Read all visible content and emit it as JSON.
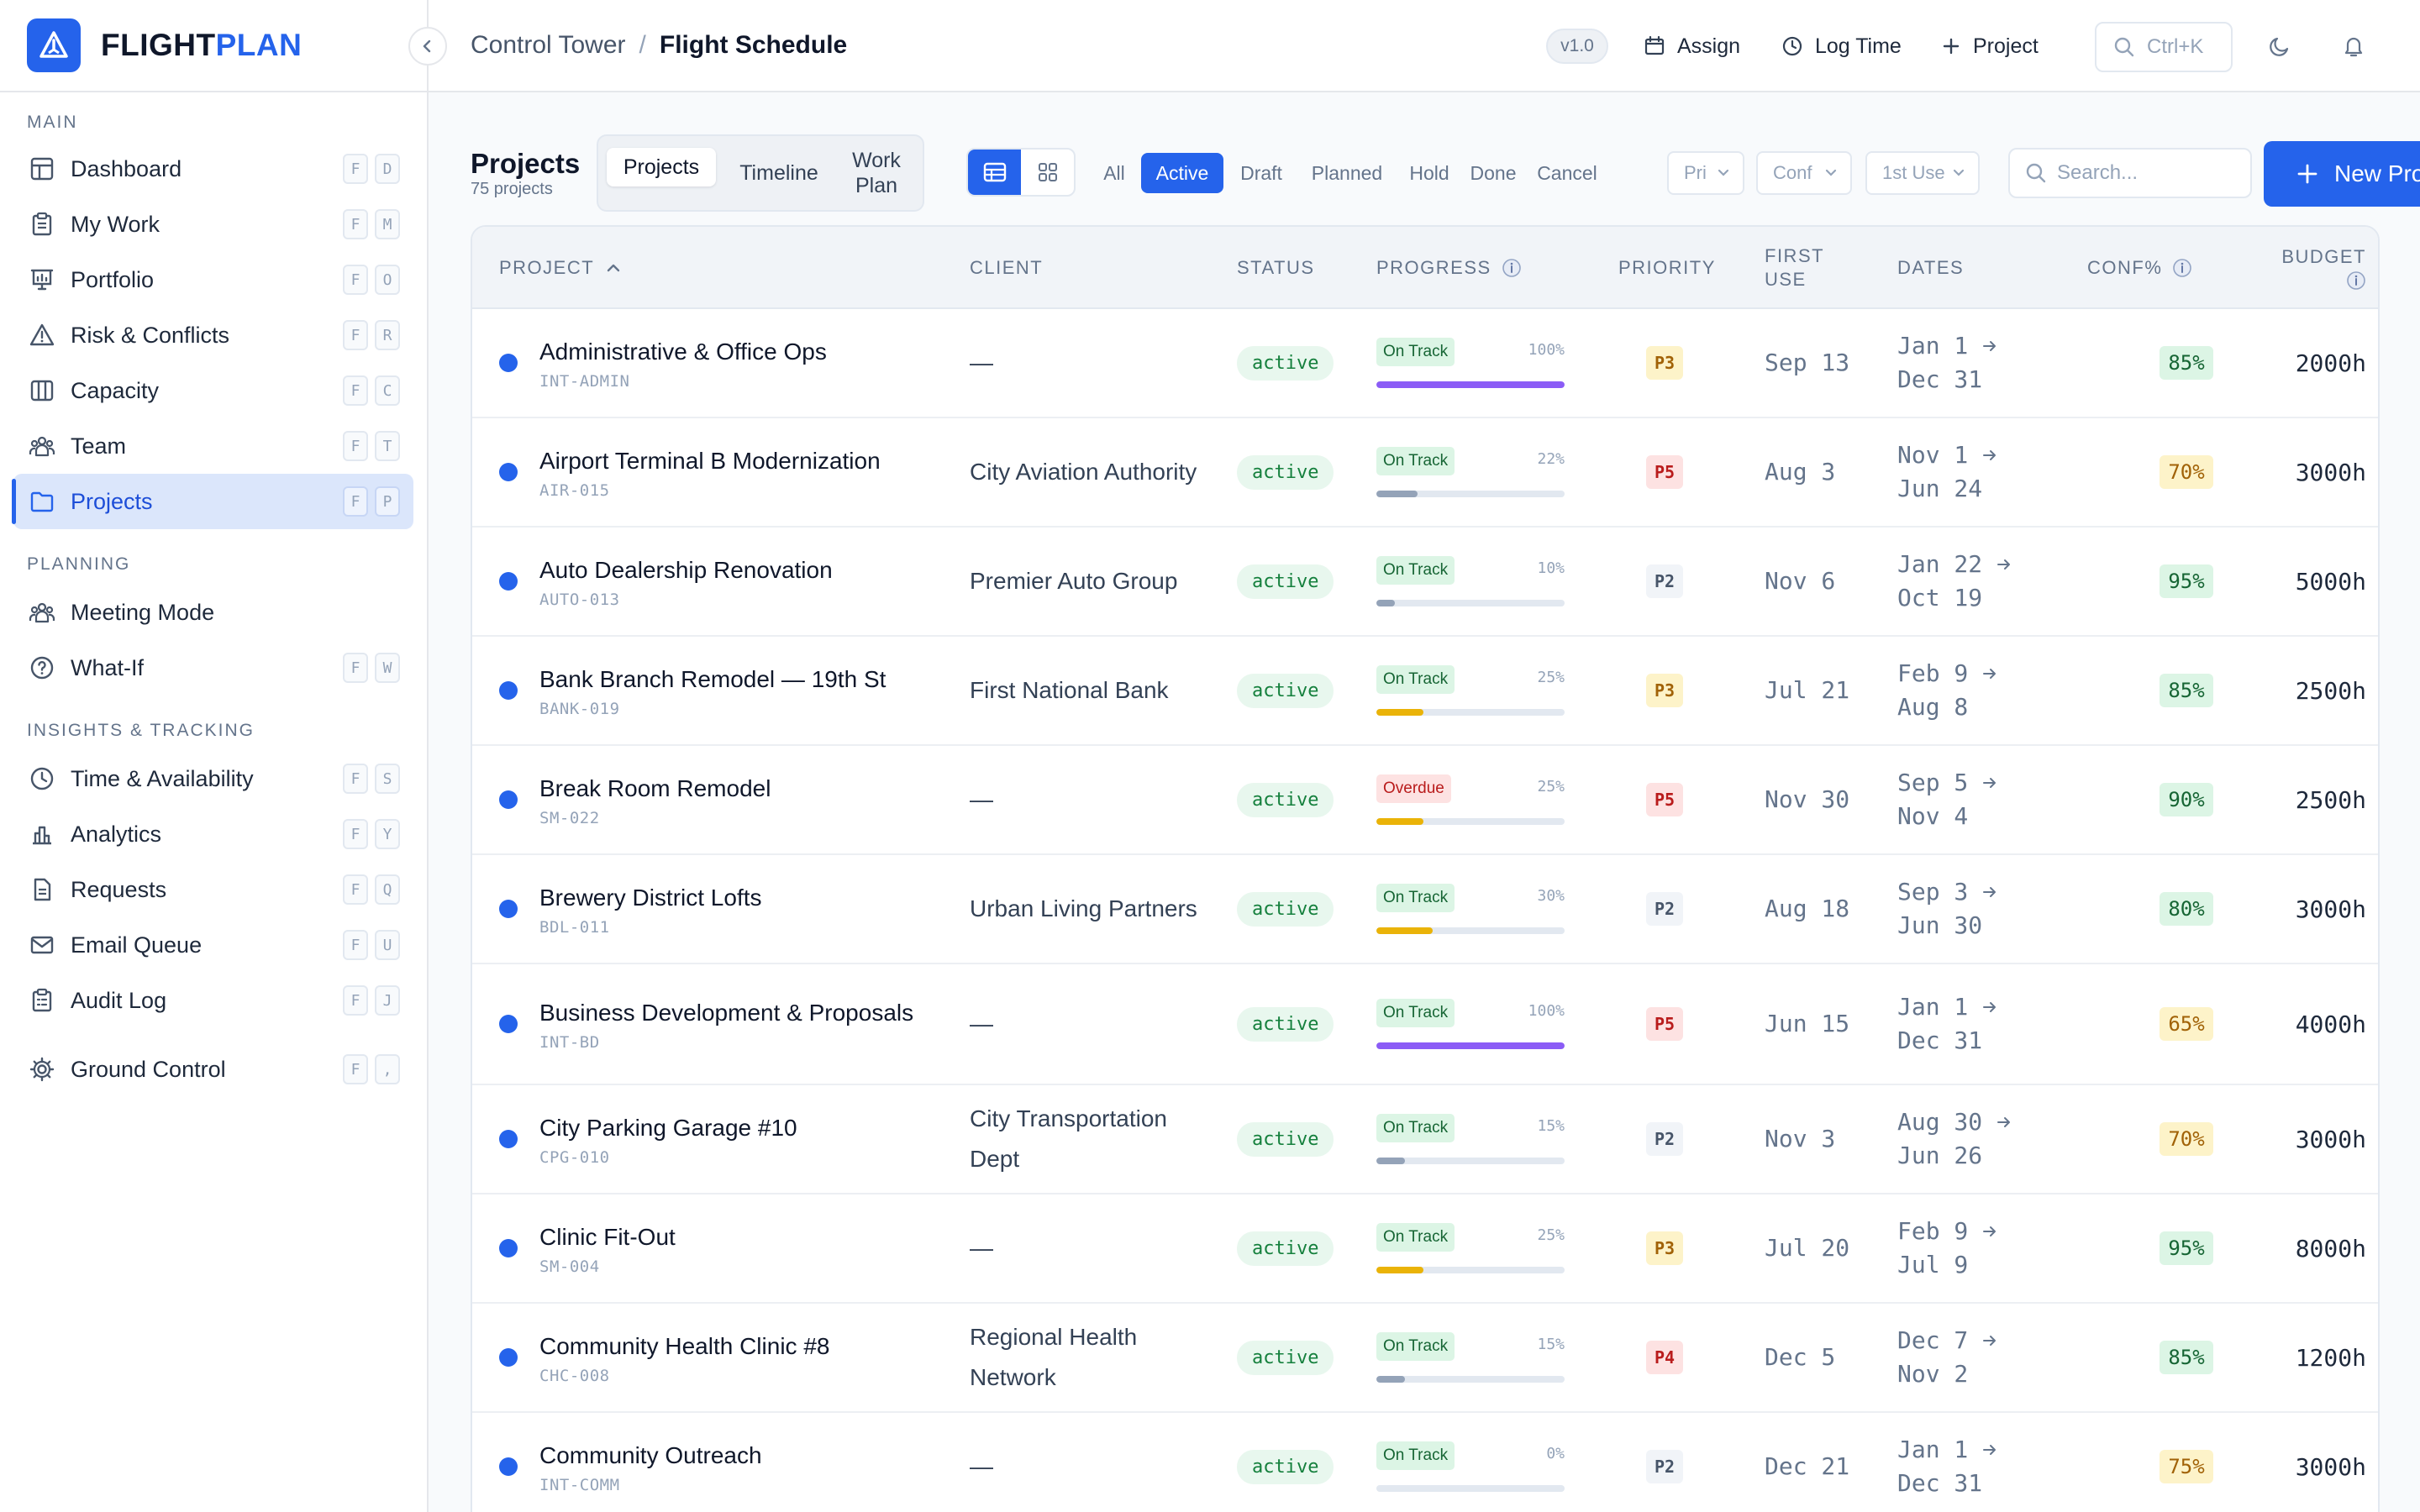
{
  "app": {
    "brand_part1": "FLIGHT",
    "brand_part2": "PLAN",
    "accent": "#2563eb"
  },
  "sidebar": {
    "sections": [
      {
        "title": "MAIN",
        "items": [
          {
            "label": "Dashboard",
            "icon": "dashboard-icon",
            "keys": [
              "F",
              "D"
            ]
          },
          {
            "label": "My Work",
            "icon": "clipboard-icon",
            "keys": [
              "F",
              "M"
            ]
          },
          {
            "label": "Portfolio",
            "icon": "presentation-chart-icon",
            "keys": [
              "F",
              "O"
            ]
          },
          {
            "label": "Risk & Conflicts",
            "icon": "warning-triangle-icon",
            "keys": [
              "F",
              "R"
            ]
          },
          {
            "label": "Capacity",
            "icon": "columns-icon",
            "keys": [
              "F",
              "C"
            ]
          },
          {
            "label": "Team",
            "icon": "team-icon",
            "keys": [
              "F",
              "T"
            ]
          },
          {
            "label": "Projects",
            "icon": "folder-icon",
            "keys": [
              "F",
              "P"
            ],
            "active": true
          }
        ]
      },
      {
        "title": "PLANNING",
        "items": [
          {
            "label": "Meeting Mode",
            "icon": "team-icon",
            "keys": []
          },
          {
            "label": "What-If",
            "icon": "help-circle-icon",
            "keys": [
              "F",
              "W"
            ]
          }
        ]
      },
      {
        "title": "INSIGHTS & TRACKING",
        "items": [
          {
            "label": "Time & Availability",
            "icon": "clock-icon",
            "keys": [
              "F",
              "S"
            ]
          },
          {
            "label": "Analytics",
            "icon": "bar-chart-icon",
            "keys": [
              "F",
              "Y"
            ]
          },
          {
            "label": "Requests",
            "icon": "document-icon",
            "keys": [
              "F",
              "Q"
            ]
          },
          {
            "label": "Email Queue",
            "icon": "mail-icon",
            "keys": [
              "F",
              "U"
            ]
          },
          {
            "label": "Audit Log",
            "icon": "clipboard-list-icon",
            "keys": [
              "F",
              "J"
            ]
          }
        ]
      }
    ],
    "footer_item": {
      "label": "Ground Control",
      "icon": "gear-icon",
      "keys": [
        "F",
        ","
      ]
    }
  },
  "header": {
    "breadcrumb_parent": "Control Tower",
    "breadcrumb_sep": "/",
    "breadcrumb_current": "Flight Schedule",
    "version": "v1.0",
    "assign_label": "Assign",
    "logtime_label": "Log Time",
    "project_label": "Project",
    "search_shortcut": "Ctrl+K"
  },
  "page": {
    "title": "Projects",
    "subtitle": "75 projects",
    "view_tabs": [
      "Projects",
      "Timeline",
      "Work Plan"
    ],
    "active_view_tab": "Projects",
    "status_chips": [
      "All",
      "Active",
      "Draft",
      "Planned",
      "Hold",
      "Done",
      "Cancel"
    ],
    "active_chip": "Active",
    "dropdowns": [
      "Pri",
      "Conf",
      "1st Use"
    ],
    "search_placeholder": "Search...",
    "new_button_label": "New Pro"
  },
  "table": {
    "columns": [
      "PROJECT",
      "CLIENT",
      "STATUS",
      "PROGRESS",
      "PRIORITY",
      "FIRST USE",
      "DATES",
      "CONF%",
      "BUDGET"
    ],
    "rows": [
      {
        "name": "Administrative & Office Ops",
        "code": "INT-ADMIN",
        "client": "—",
        "status": "active",
        "health": "On Track",
        "progress": 100,
        "progress_color": "#8b5cf6",
        "priority": "P3",
        "first_use": "Sep 13",
        "start": "Jan 1",
        "end": "Dec 31",
        "conf": "85%",
        "conf_level": "g",
        "budget": "2000h"
      },
      {
        "name": "Airport Terminal B Modernization",
        "code": "AIR-015",
        "client": "City Aviation Authority",
        "status": "active",
        "health": "On Track",
        "progress": 22,
        "progress_color": "#94a3b8",
        "priority": "P5",
        "first_use": "Aug 3",
        "start": "Nov 1",
        "end": "Jun 24",
        "conf": "70%",
        "conf_level": "y",
        "budget": "3000h"
      },
      {
        "name": "Auto Dealership Renovation",
        "code": "AUTO-013",
        "client": "Premier Auto Group",
        "status": "active",
        "health": "On Track",
        "progress": 10,
        "progress_color": "#94a3b8",
        "priority": "P2",
        "first_use": "Nov 6",
        "start": "Jan 22",
        "end": "Oct 19",
        "conf": "95%",
        "conf_level": "g",
        "budget": "5000h"
      },
      {
        "name": "Bank Branch Remodel — 19th St",
        "code": "BANK-019",
        "client": "First National Bank",
        "status": "active",
        "health": "On Track",
        "progress": 25,
        "progress_color": "#eab308",
        "priority": "P3",
        "first_use": "Jul 21",
        "start": "Feb 9",
        "end": "Aug 8",
        "conf": "85%",
        "conf_level": "g",
        "budget": "2500h"
      },
      {
        "name": "Break Room Remodel",
        "code": "SM-022",
        "client": "—",
        "status": "active",
        "health": "Overdue",
        "progress": 25,
        "progress_color": "#eab308",
        "priority": "P5",
        "first_use": "Nov 30",
        "start": "Sep 5",
        "end": "Nov 4",
        "conf": "90%",
        "conf_level": "g",
        "budget": "2500h"
      },
      {
        "name": "Brewery District Lofts",
        "code": "BDL-011",
        "client": "Urban Living Partners",
        "status": "active",
        "health": "On Track",
        "progress": 30,
        "progress_color": "#eab308",
        "priority": "P2",
        "first_use": "Aug 18",
        "start": "Sep 3",
        "end": "Jun 30",
        "conf": "80%",
        "conf_level": "g",
        "budget": "3000h"
      },
      {
        "name": "Business Development & Proposals",
        "code": "INT-BD",
        "client": "—",
        "status": "active",
        "health": "On Track",
        "progress": 100,
        "progress_color": "#8b5cf6",
        "priority": "P5",
        "first_use": "Jun 15",
        "start": "Jan 1",
        "end": "Dec 31",
        "conf": "65%",
        "conf_level": "y",
        "budget": "4000h"
      },
      {
        "name": "City Parking Garage #10",
        "code": "CPG-010",
        "client": "City Transportation Dept",
        "status": "active",
        "health": "On Track",
        "progress": 15,
        "progress_color": "#94a3b8",
        "priority": "P2",
        "first_use": "Nov 3",
        "start": "Aug 30",
        "end": "Jun 26",
        "conf": "70%",
        "conf_level": "y",
        "budget": "3000h"
      },
      {
        "name": "Clinic Fit-Out",
        "code": "SM-004",
        "client": "—",
        "status": "active",
        "health": "On Track",
        "progress": 25,
        "progress_color": "#eab308",
        "priority": "P3",
        "first_use": "Jul 20",
        "start": "Feb 9",
        "end": "Jul 9",
        "conf": "95%",
        "conf_level": "g",
        "budget": "8000h"
      },
      {
        "name": "Community Health Clinic #8",
        "code": "CHC-008",
        "client": "Regional Health Network",
        "status": "active",
        "health": "On Track",
        "progress": 15,
        "progress_color": "#94a3b8",
        "priority": "P4",
        "first_use": "Dec 5",
        "start": "Dec 7",
        "end": "Nov 2",
        "conf": "85%",
        "conf_level": "g",
        "budget": "1200h"
      },
      {
        "name": "Community Outreach",
        "code": "INT-COMM",
        "client": "—",
        "status": "active",
        "health": "On Track",
        "progress": 0,
        "progress_color": "#94a3b8",
        "priority": "P2",
        "first_use": "Dec 21",
        "start": "Jan 1",
        "end": "Dec 31",
        "conf": "75%",
        "conf_level": "y",
        "budget": "3000h"
      }
    ]
  }
}
